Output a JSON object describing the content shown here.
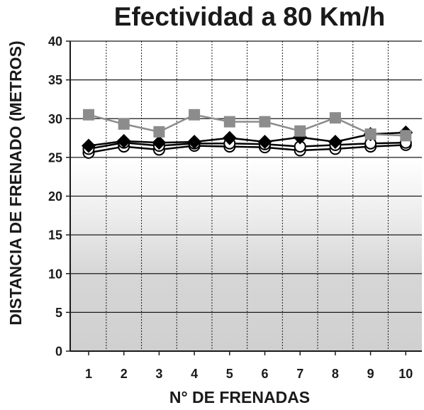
{
  "chart_data": {
    "type": "line",
    "title": "Efectividad a 80 Km/h",
    "xlabel": "N° DE FRENADAS",
    "ylabel": "DISTANCIA DE FRENADO (METROS)",
    "categories": [
      "1",
      "2",
      "3",
      "4",
      "5",
      "6",
      "7",
      "8",
      "9",
      "10"
    ],
    "ylim": [
      0,
      40
    ],
    "yticks": [
      "0",
      "5",
      "10",
      "15",
      "20",
      "25",
      "30",
      "35",
      "40"
    ],
    "grid": {
      "horizontal": "solid",
      "vertical": "dotted"
    },
    "legend": "none",
    "series": [
      {
        "marker": "square",
        "color": "#8c8c8c",
        "values": [
          30.5,
          29.3,
          28.3,
          30.5,
          29.6,
          29.6,
          28.4,
          30.1,
          28.0,
          27.8
        ]
      },
      {
        "marker": "diamond",
        "color": "#000000",
        "values": [
          26.5,
          27.1,
          26.9,
          27.0,
          27.5,
          27.0,
          27.6,
          27.0,
          28.0,
          28.2
        ]
      },
      {
        "marker": "circle-open",
        "color": "#000000",
        "values": [
          26.1,
          26.9,
          26.5,
          26.8,
          26.8,
          26.7,
          26.4,
          26.6,
          26.8,
          26.9
        ]
      },
      {
        "marker": "circle-open",
        "color": "#000000",
        "values": [
          25.6,
          26.4,
          26.0,
          26.5,
          26.4,
          26.3,
          25.9,
          26.1,
          26.4,
          26.6
        ]
      }
    ]
  }
}
